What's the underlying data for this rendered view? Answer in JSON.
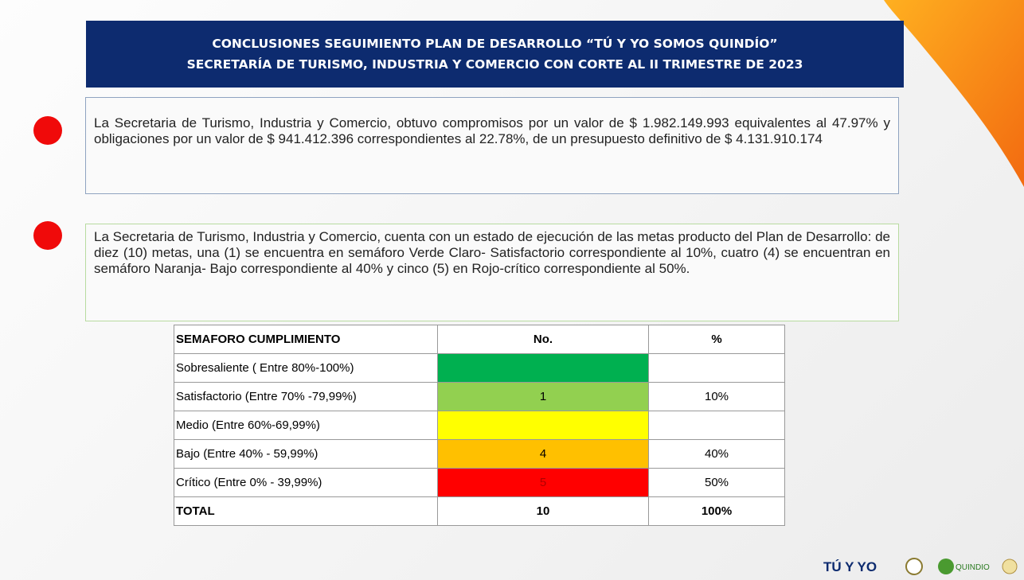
{
  "header": {
    "title_line1": "CONCLUSIONES SEGUIMIENTO PLAN DE DESARROLLO “TÚ Y YO SOMOS QUINDÍO”",
    "title_line2": "SECRETARÍA DE TURISMO, INDUSTRIA Y COMERCIO CON CORTE AL II TRIMESTRE DE 2023"
  },
  "paragraphs": [
    "La Secretaria de Turismo, Industria y Comercio, obtuvo compromisos por un valor de $ 1.982.149.993 equivalentes al 47.97% y obligaciones por un valor de $ 941.412.396 correspondientes al 22.78%, de un presupuesto definitivo de $ 4.131.910.174",
    "La Secretaria de Turismo, Industria y Comercio, cuenta con un estado de ejecución de las metas producto del Plan de Desarrollo: de diez (10) metas, una (1) se encuentra en semáforo Verde Claro- Satisfactorio correspondiente al 10%, cuatro (4) se encuentran en semáforo Naranja- Bajo correspondiente al 40% y cinco (5) en Rojo-crítico correspondiente al 50%."
  ],
  "table": {
    "headers": [
      "SEMAFORO CUMPLIMIENTO",
      "No.",
      "%"
    ],
    "rows": [
      {
        "label": "Sobresaliente  ( Entre 80%-100%)"
      },
      {
        "label": "Satisfactorio (Entre 70% -79,99%)",
        "no": "1",
        "pct": "10%"
      },
      {
        "label": "Medio (Entre 60%-69,99%)"
      },
      {
        "label": "Bajo (Entre 40% - 59,99%)",
        "no": "4",
        "pct": "40%"
      },
      {
        "label": "Crítico (Entre 0% - 39,99%)",
        "no": "5",
        "pct": "50%"
      }
    ],
    "total": {
      "label": "TOTAL",
      "no": "10",
      "pct": "100%"
    }
  },
  "logos": {
    "main": "TÚ Y YO",
    "dept": "QUINDIO"
  }
}
